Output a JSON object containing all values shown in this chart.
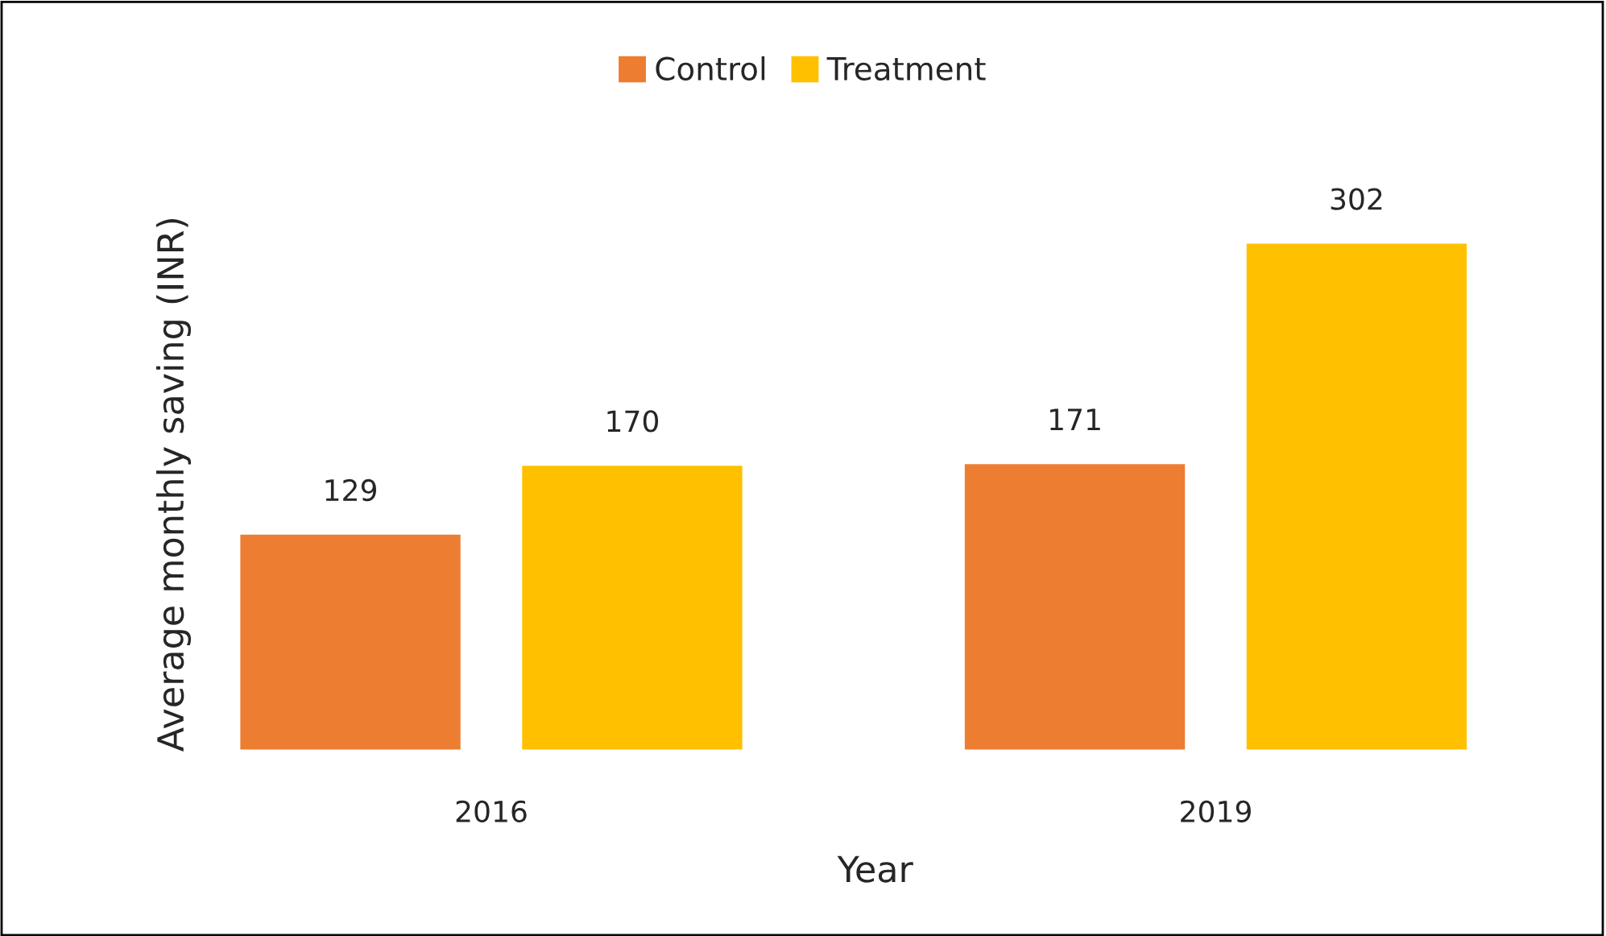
{
  "chart_data": {
    "type": "bar",
    "xlabel": "Year",
    "ylabel": "Average monthly saving (INR)",
    "categories": [
      "2016",
      "2019"
    ],
    "series": [
      {
        "name": "Control",
        "color": "#ed7d31",
        "values": [
          129,
          171
        ]
      },
      {
        "name": "Treatment",
        "color": "#ffc000",
        "values": [
          170,
          302
        ]
      }
    ],
    "data_labels": true,
    "legend": "top",
    "grid": false
  }
}
